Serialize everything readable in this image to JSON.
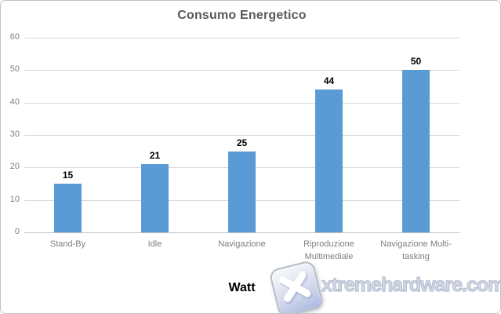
{
  "chart_data": {
    "type": "bar",
    "title": "Consumo Energetico",
    "categories": [
      "Stand-By",
      "Idle",
      "Navigazione",
      "Riproduzione Multimediale",
      "Navigazione Multi-tasking"
    ],
    "values": [
      15,
      21,
      25,
      44,
      50
    ],
    "xlabel": "Watt",
    "ylabel": "",
    "ylim": [
      0,
      60
    ],
    "ytick_step": 10,
    "yticks": [
      "0",
      "10",
      "20",
      "30",
      "40",
      "50",
      "60"
    ],
    "grid": true,
    "legend_position": "none",
    "data_labels": true,
    "bar_color": "#5B9BD5",
    "gridline_color": "#D9D9D9",
    "axis_line_color": "#C3C3C3",
    "tick_label_color": "#7F7F7F",
    "title_color": "#595959",
    "data_label_color": "#000000"
  },
  "watermark": {
    "text": "xtremehardware.com",
    "logo": "x-logo-icon"
  }
}
